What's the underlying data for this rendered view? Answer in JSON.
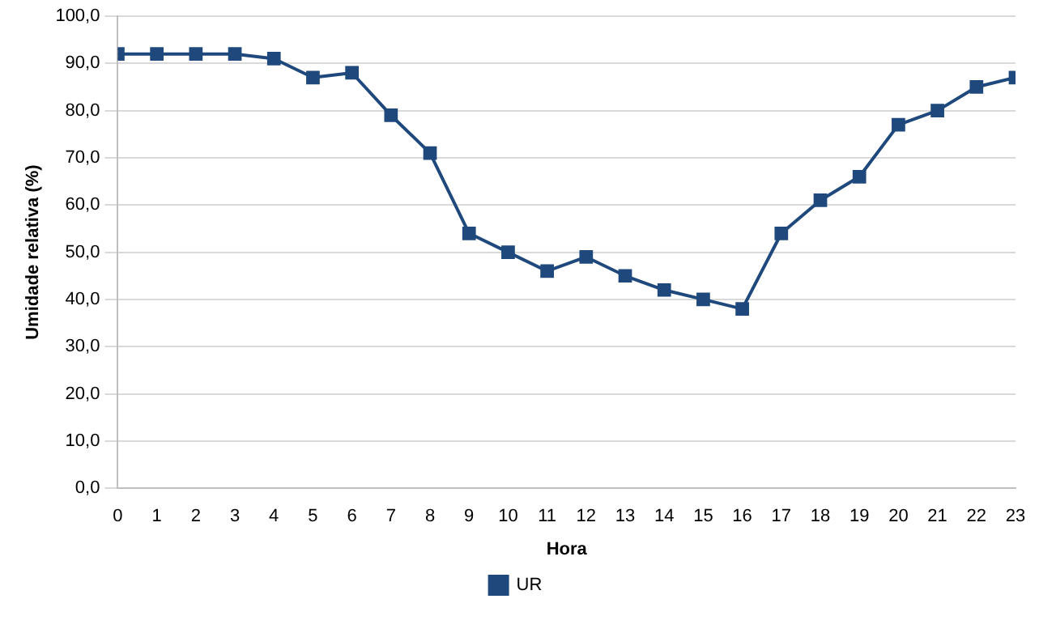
{
  "chart_data": {
    "type": "line",
    "xlabel": "Hora",
    "ylabel": "Umidade relativa (%)",
    "x": [
      0,
      1,
      2,
      3,
      4,
      5,
      6,
      7,
      8,
      9,
      10,
      11,
      12,
      13,
      14,
      15,
      16,
      17,
      18,
      19,
      20,
      21,
      22,
      23
    ],
    "series": [
      {
        "name": "UR",
        "color": "#1f497d",
        "values": [
          92,
          92,
          92,
          92,
          91,
          87,
          88,
          79,
          71,
          54,
          50,
          46,
          49,
          45,
          42,
          40,
          38,
          54,
          61,
          66,
          77,
          80,
          85,
          87
        ]
      }
    ],
    "xlim": [
      0,
      23
    ],
    "xticks": [
      0,
      1,
      2,
      3,
      4,
      5,
      6,
      7,
      8,
      9,
      10,
      11,
      12,
      13,
      14,
      15,
      16,
      17,
      18,
      19,
      20,
      21,
      22,
      23
    ],
    "ylim": [
      0,
      100
    ],
    "yticks": [
      {
        "value": 0,
        "label": "0,0"
      },
      {
        "value": 10,
        "label": "10,0"
      },
      {
        "value": 20,
        "label": "20,0"
      },
      {
        "value": 30,
        "label": "30,0"
      },
      {
        "value": 40,
        "label": "40,0"
      },
      {
        "value": 50,
        "label": "50,0"
      },
      {
        "value": 60,
        "label": "60,0"
      },
      {
        "value": 70,
        "label": "70,0"
      },
      {
        "value": 80,
        "label": "80,0"
      },
      {
        "value": 90,
        "label": "90,0"
      },
      {
        "value": 100,
        "label": "100,0"
      }
    ],
    "grid": "y",
    "legend": "bottom",
    "marker": "square",
    "line_style": "solid"
  }
}
